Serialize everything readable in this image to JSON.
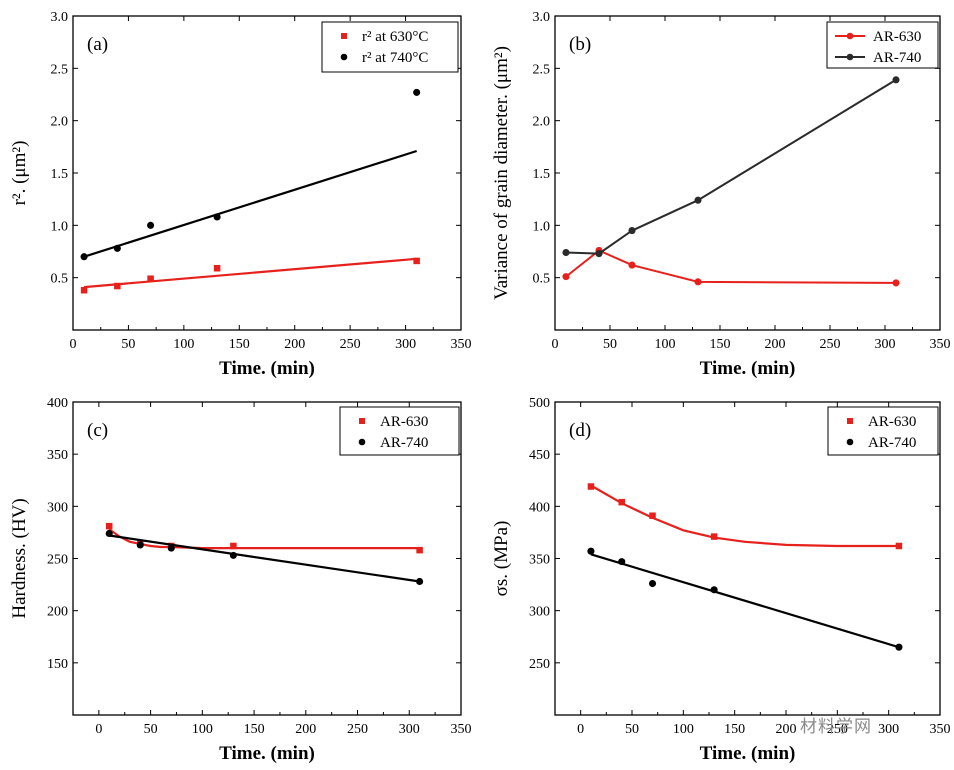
{
  "watermark": "材料学网",
  "chart_data": [
    {
      "type": "scatter",
      "panel_label": "(a)",
      "xlabel": "Time. (min)",
      "ylabel": "r². (μm²)",
      "xlim": [
        0,
        350
      ],
      "ylim": [
        0,
        3.0
      ],
      "xticks": [
        "0",
        "50",
        "100",
        "150",
        "200",
        "250",
        "300",
        "350"
      ],
      "yticks": [
        "0.5",
        "1.0",
        "1.5",
        "2.0",
        "2.5",
        "3.0"
      ],
      "legend_position": "top-right",
      "series": [
        {
          "name": "r² at 630°C",
          "color": "#e8201c",
          "marker": "square",
          "x": [
            10,
            40,
            70,
            130,
            310
          ],
          "y": [
            0.38,
            0.42,
            0.49,
            0.59,
            0.66
          ],
          "fit": {
            "kind": "linear",
            "x": [
              10,
              310
            ],
            "y": [
              0.41,
              0.68
            ]
          }
        },
        {
          "name": "r² at 740°C",
          "color": "#000000",
          "marker": "circle",
          "x": [
            10,
            40,
            70,
            130,
            310
          ],
          "y": [
            0.7,
            0.78,
            1.0,
            1.08,
            2.27
          ],
          "fit": {
            "kind": "linear",
            "x": [
              10,
              310
            ],
            "y": [
              0.7,
              1.71
            ]
          }
        }
      ]
    },
    {
      "type": "line",
      "panel_label": "(b)",
      "xlabel": "Time. (min)",
      "ylabel": "Variance of grain diameter. (μm²)",
      "xlim": [
        0,
        350
      ],
      "ylim": [
        0,
        3.0
      ],
      "xticks": [
        "0",
        "50",
        "100",
        "150",
        "200",
        "250",
        "300",
        "350"
      ],
      "yticks": [
        "0.5",
        "1.0",
        "1.5",
        "2.0",
        "2.5",
        "3.0"
      ],
      "legend_position": "top-right",
      "series": [
        {
          "name": "AR-630",
          "color": "#e8201c",
          "marker": "circle",
          "x": [
            10,
            40,
            70,
            130,
            310
          ],
          "y": [
            0.51,
            0.76,
            0.62,
            0.46,
            0.45
          ]
        },
        {
          "name": "AR-740",
          "color": "#2a2a2a",
          "marker": "circle",
          "x": [
            10,
            40,
            70,
            130,
            310
          ],
          "y": [
            0.74,
            0.73,
            0.95,
            1.24,
            2.39
          ]
        }
      ]
    },
    {
      "type": "scatter",
      "panel_label": "(c)",
      "xlabel": "Time. (min)",
      "ylabel": "Hardness. (HV)",
      "xlim": [
        -25,
        350
      ],
      "ylim": [
        100,
        400
      ],
      "xticks": [
        "0",
        "50",
        "100",
        "150",
        "200",
        "250",
        "300",
        "350"
      ],
      "yticks": [
        "150",
        "200",
        "250",
        "300",
        "350",
        "400"
      ],
      "legend_position": "top-right",
      "series": [
        {
          "name": "AR-630",
          "color": "#e8201c",
          "marker": "square",
          "x": [
            10,
            40,
            70,
            130,
            310
          ],
          "y": [
            281,
            264,
            262,
            262,
            258
          ],
          "fit": {
            "kind": "curve",
            "x": [
              10,
              20,
              30,
              40,
              50,
              60,
              70,
              100,
              130,
              200,
              310
            ],
            "y": [
              278,
              271,
              266,
              264,
              262,
              261,
              261,
              260,
              260,
              260,
              260
            ]
          }
        },
        {
          "name": "AR-740",
          "color": "#000000",
          "marker": "circle",
          "x": [
            10,
            40,
            70,
            130,
            310
          ],
          "y": [
            274,
            263,
            260,
            253,
            228
          ],
          "fit": {
            "kind": "linear",
            "x": [
              10,
              310
            ],
            "y": [
              272,
              228
            ]
          }
        }
      ]
    },
    {
      "type": "scatter",
      "panel_label": "(d)",
      "xlabel": "Time. (min)",
      "ylabel": "σs. (MPa)",
      "xlim": [
        -25,
        350
      ],
      "ylim": [
        200,
        500
      ],
      "xticks": [
        "0",
        "50",
        "100",
        "150",
        "200",
        "250",
        "300",
        "350"
      ],
      "yticks": [
        "250",
        "300",
        "350",
        "400",
        "450",
        "500"
      ],
      "legend_position": "top-right",
      "series": [
        {
          "name": "AR-630",
          "color": "#e8201c",
          "marker": "square",
          "x": [
            10,
            40,
            70,
            130,
            310
          ],
          "y": [
            419,
            404,
            391,
            371,
            362
          ],
          "fit": {
            "kind": "curve",
            "x": [
              10,
              40,
              70,
              100,
              130,
              160,
              200,
              250,
              310
            ],
            "y": [
              420,
              403,
              389,
              377,
              370,
              366,
              363,
              362,
              362
            ]
          }
        },
        {
          "name": "AR-740",
          "color": "#000000",
          "marker": "circle",
          "x": [
            10,
            40,
            70,
            130,
            310
          ],
          "y": [
            357,
            347,
            326,
            320,
            265
          ],
          "fit": {
            "kind": "linear",
            "x": [
              10,
              310
            ],
            "y": [
              354,
              265
            ]
          }
        }
      ]
    }
  ]
}
